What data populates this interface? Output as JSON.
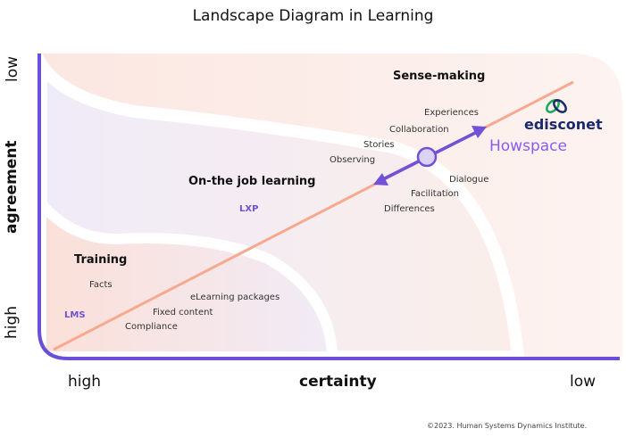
{
  "title": "Landscape Diagram in Learning",
  "axes": {
    "y_label": "agreement",
    "y_low": "low",
    "y_high": "high",
    "x_label": "certainty",
    "x_high": "high",
    "x_low": "low"
  },
  "regions": {
    "sense_making": {
      "label": "Sense-making",
      "items": [
        "Experiences",
        "Collaboration",
        "Stories",
        "Observing",
        "Dialogue",
        "Facilitation",
        "Differences"
      ]
    },
    "on_the_job": {
      "label": "On-the job learning",
      "tool": "LXP"
    },
    "training": {
      "label": "Training",
      "items": [
        "Facts",
        "eLearning packages",
        "Fixed content",
        "Compliance"
      ],
      "tool": "LMS"
    }
  },
  "logos": {
    "edisconet": "edisconet",
    "howspace": "Howspace"
  },
  "copyright": "©2023. Human Systems Dynamics Institute.",
  "colors": {
    "axis": "#6b4fd8",
    "diagonal": "#f7a98f",
    "arrow": "#7250d8",
    "edisconet_dark": "#1b2a6b",
    "edisconet_green": "#1aa85a",
    "howspace": "#8a5cf0"
  }
}
